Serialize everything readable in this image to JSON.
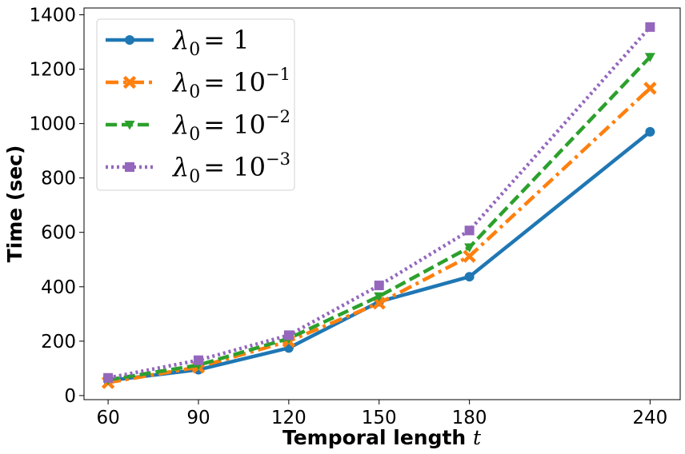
{
  "chart_data": {
    "type": "line",
    "title": "",
    "xlabel": "Temporal length",
    "xlabel_var": "t",
    "ylabel": "Time (sec)",
    "x": [
      60,
      90,
      120,
      150,
      180,
      240
    ],
    "xticks": [
      "60",
      "90",
      "120",
      "150",
      "180",
      "240"
    ],
    "yticks": [
      "0",
      "200",
      "400",
      "600",
      "800",
      "1000",
      "1200",
      "1400"
    ],
    "xlim": [
      52,
      250
    ],
    "ylim": [
      -15,
      1425
    ],
    "grid": false,
    "legend_position": "top-left",
    "series": [
      {
        "name": "λ0 = 1",
        "legend_sym": "λ",
        "legend_sub": "0",
        "legend_base": "= 1",
        "legend_exp": "",
        "color": "#1f77b4",
        "dash": "solid",
        "marker": "circle",
        "values": [
          55,
          95,
          175,
          345,
          437,
          970
        ]
      },
      {
        "name": "λ0 = 10^-1",
        "legend_sym": "λ",
        "legend_sub": "0",
        "legend_base": "= 10",
        "legend_exp": "−1",
        "color": "#ff7f0e",
        "dash": "dashdot",
        "marker": "x",
        "values": [
          48,
          105,
          200,
          340,
          512,
          1130
        ]
      },
      {
        "name": "λ0 = 10^-2",
        "legend_sym": "λ",
        "legend_sub": "0",
        "legend_base": "= 10",
        "legend_exp": "−2",
        "color": "#2ca02c",
        "dash": "dashed",
        "marker": "triangle-down",
        "values": [
          58,
          112,
          210,
          365,
          545,
          1245
        ]
      },
      {
        "name": "λ0 = 10^-3",
        "legend_sym": "λ",
        "legend_sub": "0",
        "legend_base": "= 10",
        "legend_exp": "−3",
        "color": "#9467bd",
        "dash": "dotted",
        "marker": "square",
        "values": [
          65,
          130,
          222,
          405,
          607,
          1355
        ]
      }
    ]
  }
}
